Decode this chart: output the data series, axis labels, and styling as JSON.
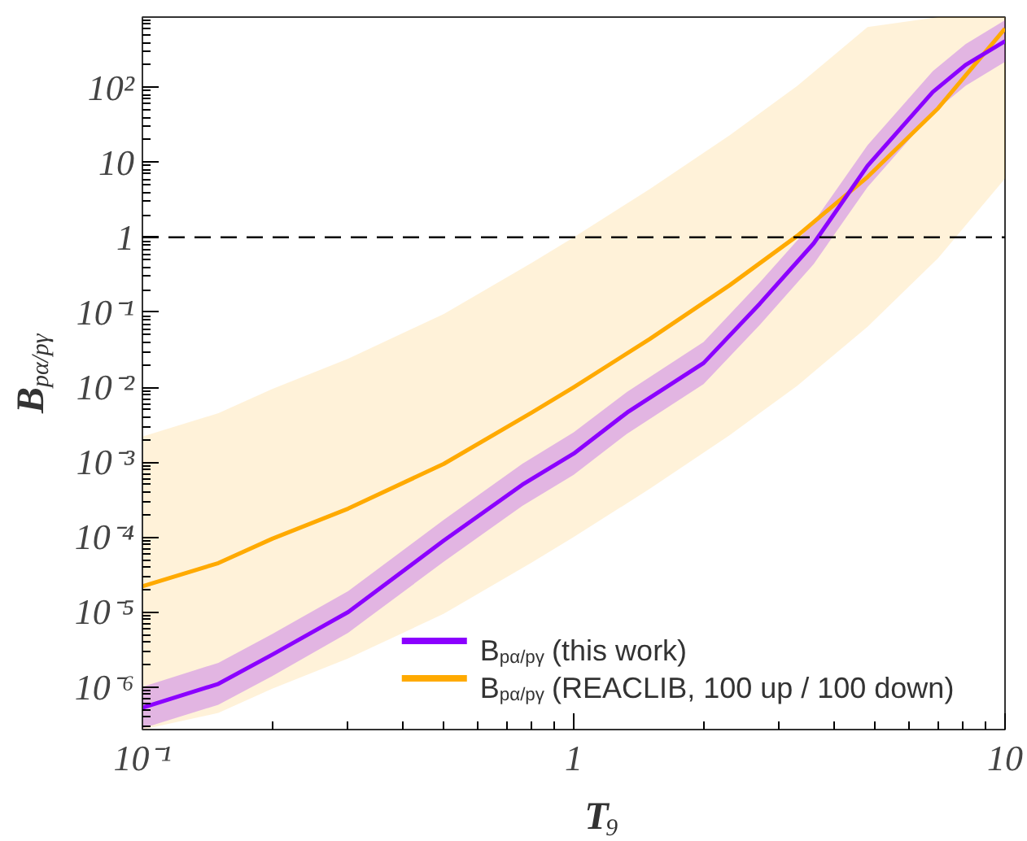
{
  "chart_data": {
    "type": "line",
    "xlabel": "T$_{9}$",
    "ylabel": "B$_{pα/pγ}$",
    "log": "xy",
    "grid": false,
    "legend": "bottom right",
    "xlim": [
      0.1,
      10
    ],
    "ylim": [
      2.7e-07,
      870
    ],
    "xticks": [
      {
        "value": 0.1,
        "label": "10⁻¹"
      },
      1,
      10
    ],
    "yticks": [
      {
        "value": 1e-06,
        "label": "10⁻⁶"
      },
      {
        "value": 1e-05,
        "label": "10⁻⁵"
      },
      {
        "value": 0.0001,
        "label": "10⁻⁴"
      },
      {
        "value": 0.001,
        "label": "10⁻³"
      },
      {
        "value": 0.01,
        "label": "10⁻²"
      },
      {
        "value": 0.1,
        "label": "10⁻¹"
      },
      1,
      10,
      {
        "value": 100,
        "label": "10²"
      }
    ],
    "ref_lines": [
      {
        "axis": "y",
        "value": 1,
        "label": null,
        "color": "#000000",
        "line_style": "dashed"
      }
    ],
    "series": [
      {
        "name": "B$_{pα/pγ}$ (REACLIB, 100 up / 100 down)",
        "color": "#ffaa00",
        "x": [
          0.1,
          0.15,
          0.2,
          0.3,
          0.5,
          0.8,
          1.0,
          1.5,
          2.3,
          3.3,
          4.8,
          7,
          10
        ],
        "values": [
          2.2e-05,
          4.5e-05,
          9.5e-05,
          0.00024,
          0.00095,
          0.0046,
          0.01,
          0.044,
          0.23,
          1.05,
          6.4,
          53,
          610
        ],
        "lower": [
          2.7e-07,
          4.5e-07,
          9.5e-07,
          2.4e-06,
          9.5e-06,
          4.6e-05,
          0.0001,
          0.00044,
          0.0023,
          0.0105,
          0.064,
          0.53,
          6.1
        ],
        "upper": [
          0.0022,
          0.0045,
          0.0095,
          0.024,
          0.095,
          0.46,
          1,
          4.4,
          23,
          105,
          640,
          870,
          870
        ]
      },
      {
        "name": "B$_{pα/pγ}$ (this work)",
        "color": "#8b00ff",
        "x": [
          0.1,
          0.15,
          0.2,
          0.3,
          0.5,
          0.76,
          1.0,
          1.33,
          2,
          2.7,
          3.6,
          4.8,
          6.8,
          8.1,
          10
        ],
        "values": [
          5.3e-07,
          1.1e-06,
          2.7e-06,
          1e-05,
          9e-05,
          0.0005,
          0.0013,
          0.0046,
          0.021,
          0.13,
          0.83,
          9,
          87,
          200,
          415
        ],
        "lower": [
          2.8e-07,
          5.8e-07,
          1.4e-06,
          5.3e-06,
          4.7e-05,
          0.00026,
          0.00068,
          0.0024,
          0.011,
          0.068,
          0.44,
          4.7,
          46,
          105,
          220
        ],
        "upper": [
          1e-06,
          2.1e-06,
          5.1e-06,
          1.9e-05,
          0.00017,
          0.00095,
          0.0025,
          0.0087,
          0.04,
          0.25,
          1.6,
          17,
          165,
          380,
          790
        ]
      }
    ]
  }
}
